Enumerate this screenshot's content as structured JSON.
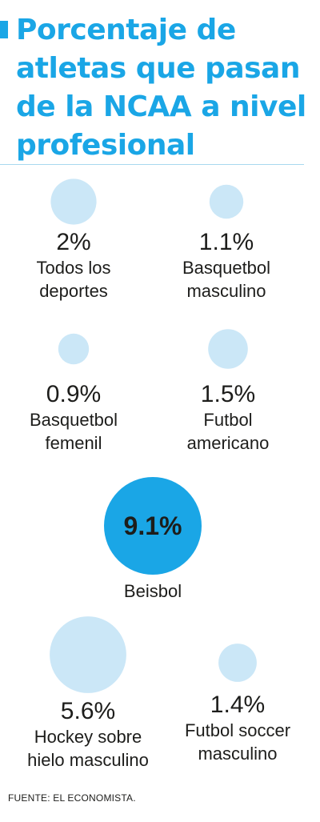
{
  "title": "Porcentaje de atletas que pasan de la NCAA a nivel profesional",
  "source": "FUENTE: EL ECONOMISTA.",
  "colors": {
    "accent": "#1aa6e6",
    "bubble": "#cbe7f7",
    "highlight": "#1aa6e6",
    "text": "#1d1d1b"
  },
  "chart_data": {
    "type": "bubble",
    "title": "Porcentaje de atletas que pasan de la NCAA a nivel profesional",
    "unit": "%",
    "highlight": "Beisbol",
    "items": [
      {
        "label": "Todos los deportes",
        "value": 2,
        "display": "2%",
        "label_lines": [
          "Todos los",
          "deportes"
        ]
      },
      {
        "label": "Basquetbol masculino",
        "value": 1.1,
        "display": "1.1%",
        "label_lines": [
          "Basquetbol",
          "masculino"
        ]
      },
      {
        "label": "Basquetbol femenil",
        "value": 0.9,
        "display": "0.9%",
        "label_lines": [
          "Basquetbol",
          "femenil"
        ]
      },
      {
        "label": "Futbol americano",
        "value": 1.5,
        "display": "1.5%",
        "label_lines": [
          "Futbol",
          "americano"
        ]
      },
      {
        "label": "Beisbol",
        "value": 9.1,
        "display": "9.1%",
        "label_lines": [
          "Beisbol"
        ]
      },
      {
        "label": "Hockey sobre hielo masculino",
        "value": 5.6,
        "display": "5.6%",
        "label_lines": [
          "Hockey sobre",
          "hielo masculino"
        ]
      },
      {
        "label": "Futbol soccer masculino",
        "value": 1.4,
        "display": "1.4%",
        "label_lines": [
          "Futbol soccer",
          "masculino"
        ]
      }
    ]
  }
}
